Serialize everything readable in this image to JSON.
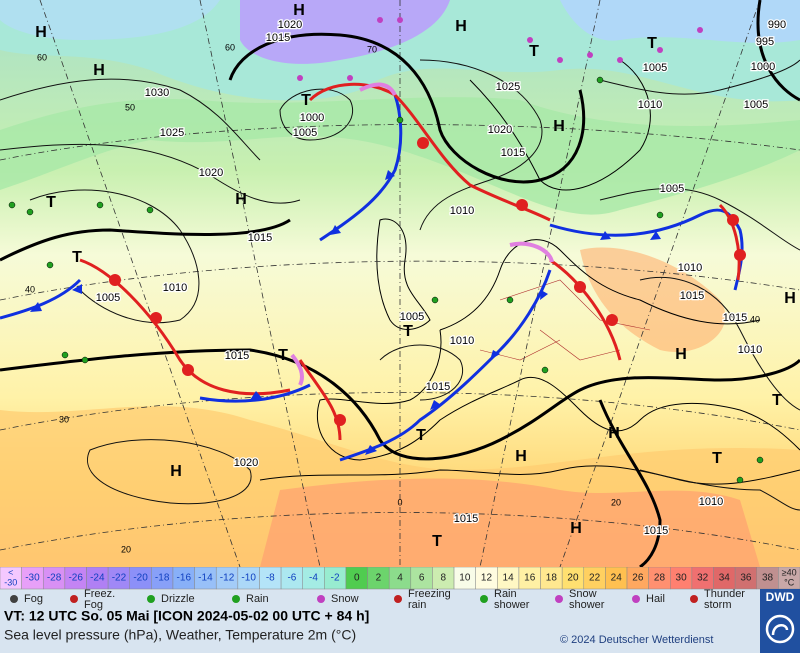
{
  "map": {
    "pressure_labels": [
      "1020",
      "1015",
      "1030",
      "1025",
      "1020",
      "1015",
      "1000",
      "1005",
      "1025",
      "1020",
      "1015",
      "1010",
      "1005",
      "1010",
      "1005",
      "1000",
      "995",
      "990",
      "1005",
      "1010",
      "1005",
      "1015",
      "1005",
      "1010",
      "1015",
      "1010",
      "1015",
      "1015",
      "1010",
      "1020",
      "1015",
      "1010",
      "1015"
    ],
    "highs": [
      "H",
      "H",
      "H",
      "H",
      "H",
      "H",
      "H",
      "H",
      "H",
      "H",
      "H",
      "H"
    ],
    "lows": [
      "T",
      "T",
      "T",
      "T",
      "T",
      "T",
      "T",
      "T",
      "T",
      "T",
      "T"
    ],
    "graticule_labels": [
      "60",
      "50",
      "40",
      "30",
      "20",
      "0",
      "70",
      "60",
      "40",
      "20"
    ]
  },
  "temperature_scale": {
    "unit": "°C",
    "cells": [
      {
        "label": [
          "<",
          "-30"
        ],
        "color": "#f4c8ff"
      },
      {
        "label": [
          "-30"
        ],
        "color": "#e8a0f8"
      },
      {
        "label": [
          "-28"
        ],
        "color": "#d890f4"
      },
      {
        "label": [
          "-26"
        ],
        "color": "#c484f4"
      },
      {
        "label": [
          "-24"
        ],
        "color": "#b080f4"
      },
      {
        "label": [
          "-22"
        ],
        "color": "#a088f6"
      },
      {
        "label": [
          "-20"
        ],
        "color": "#8c90f8"
      },
      {
        "label": [
          "-18"
        ],
        "color": "#88a0f8"
      },
      {
        "label": [
          "-16"
        ],
        "color": "#88b0f8"
      },
      {
        "label": [
          "-14"
        ],
        "color": "#98c0f8"
      },
      {
        "label": [
          "-12"
        ],
        "color": "#a4ccf8"
      },
      {
        "label": [
          "-10"
        ],
        "color": "#acd8f8"
      },
      {
        "label": [
          "-8"
        ],
        "color": "#b4e4f8"
      },
      {
        "label": [
          "-6"
        ],
        "color": "#ace8f0"
      },
      {
        "label": [
          "-4"
        ],
        "color": "#a4ece4"
      },
      {
        "label": [
          "-2"
        ],
        "color": "#98ecd0"
      },
      {
        "label": [
          "0"
        ],
        "color": "#50cc50"
      },
      {
        "label": [
          "2"
        ],
        "color": "#6cd46c"
      },
      {
        "label": [
          "4"
        ],
        "color": "#8cdc8c"
      },
      {
        "label": [
          "6"
        ],
        "color": "#ace4a0"
      },
      {
        "label": [
          "8"
        ],
        "color": "#ccecb0"
      },
      {
        "label": [
          "10"
        ],
        "color": "#f8fce8"
      },
      {
        "label": [
          "12"
        ],
        "color": "#fffce0"
      },
      {
        "label": [
          "14"
        ],
        "color": "#fff8c4"
      },
      {
        "label": [
          "16"
        ],
        "color": "#fff0a4"
      },
      {
        "label": [
          "18"
        ],
        "color": "#ffe890"
      },
      {
        "label": [
          "20"
        ],
        "color": "#ffe070"
      },
      {
        "label": [
          "22"
        ],
        "color": "#ffd060"
      },
      {
        "label": [
          "24"
        ],
        "color": "#ffc050"
      },
      {
        "label": [
          "26"
        ],
        "color": "#ffa860"
      },
      {
        "label": [
          "28"
        ],
        "color": "#ff9070"
      },
      {
        "label": [
          "30"
        ],
        "color": "#ff8070"
      },
      {
        "label": [
          "32"
        ],
        "color": "#f07070"
      },
      {
        "label": [
          "34"
        ],
        "color": "#e06868"
      },
      {
        "label": [
          "36"
        ],
        "color": "#d07070"
      },
      {
        "label": [
          "38"
        ],
        "color": "#c09090"
      },
      {
        "label": [
          "≥40"
        ],
        "color": "#c8a8a8"
      }
    ]
  },
  "weather_legend": [
    {
      "label": [
        "Fog"
      ],
      "color": "#404040"
    },
    {
      "label": [
        "Freez.",
        "Fog"
      ],
      "color": "#c02020"
    },
    {
      "label": [
        "Drizzle"
      ],
      "color": "#20a020"
    },
    {
      "label": [
        "Rain"
      ],
      "color": "#20a020"
    },
    {
      "label": [
        "Snow"
      ],
      "color": "#c040c0"
    },
    {
      "label": [
        "Freezing",
        "rain"
      ],
      "color": "#c02020"
    },
    {
      "label": [
        "Rain",
        "shower"
      ],
      "color": "#20a020"
    },
    {
      "label": [
        "Snow",
        "shower"
      ],
      "color": "#c040c0"
    },
    {
      "label": [
        "Hail"
      ],
      "color": "#c040c0"
    },
    {
      "label": [
        "Thunder",
        "storm"
      ],
      "color": "#c02020"
    }
  ],
  "footer": {
    "valid_time": "VT: 12 UTC So.  05 Mai [ICON 2024-05-02  00 UTC + 84 h]",
    "description": "Sea level pressure (hPa), Weather, Temperature 2m (°C)",
    "copyright": "© 2024 Deutscher Wetterdienst",
    "logo": "DWD"
  }
}
